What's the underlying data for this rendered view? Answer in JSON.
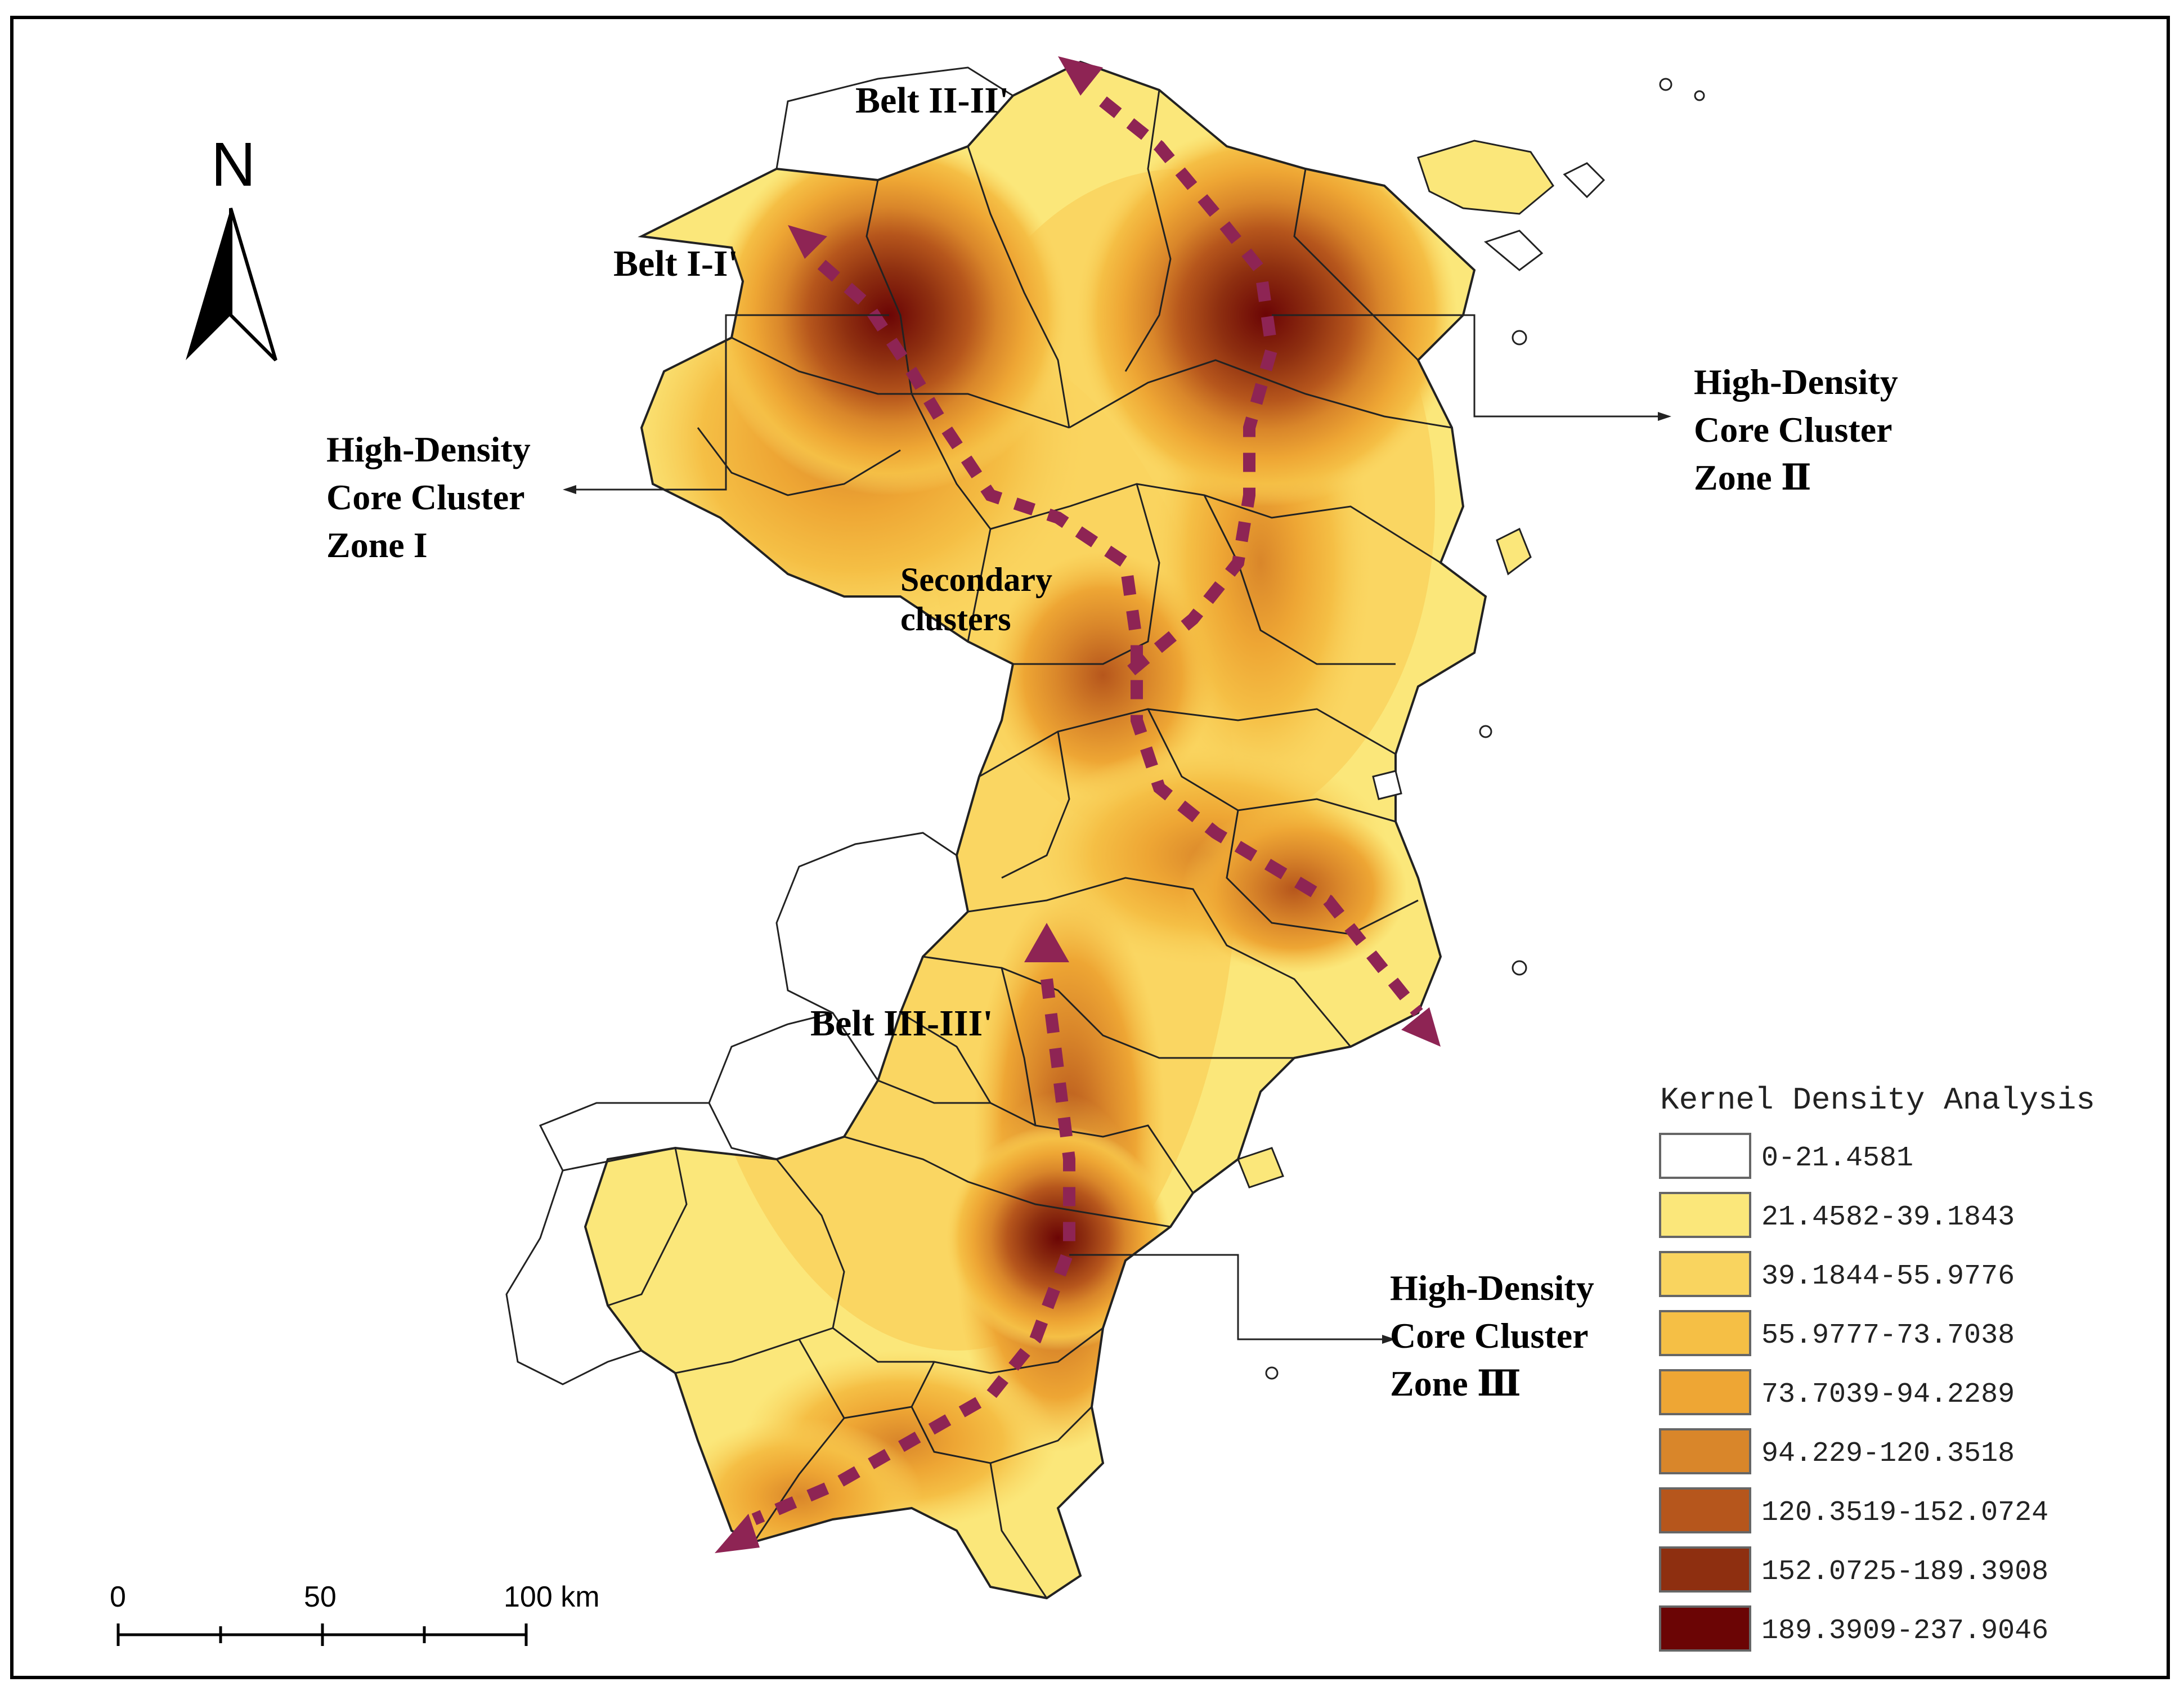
{
  "north_arrow": {
    "label": "N"
  },
  "belts": [
    {
      "label": "Belt I-I'"
    },
    {
      "label": "Belt II-II'"
    },
    {
      "label": "Belt III-III'"
    }
  ],
  "annotations": {
    "zone1": [
      "High-Density",
      "Core Cluster",
      "Zone I"
    ],
    "zone2": [
      "High-Density",
      "Core Cluster",
      "Zone Ⅱ"
    ],
    "zone3": [
      "High-Density",
      "Core Cluster",
      "Zone Ⅲ"
    ],
    "secondary": [
      "Secondary",
      "clusters"
    ]
  },
  "scale_bar": {
    "ticks": [
      "0",
      "50",
      "100 km"
    ]
  },
  "legend": {
    "title": "Kernel Density Analysis",
    "classes": [
      {
        "label": "0-21.4581",
        "color": "#ffffff"
      },
      {
        "label": "21.4582-39.1843",
        "color": "#fbe77a"
      },
      {
        "label": "39.1844-55.9776",
        "color": "#f9d45f"
      },
      {
        "label": "55.9777-73.7038",
        "color": "#f5bf45"
      },
      {
        "label": "73.7039-94.2289",
        "color": "#eea634"
      },
      {
        "label": "94.229-120.3518",
        "color": "#d9862a"
      },
      {
        "label": "120.3519-152.0724",
        "color": "#b6561c"
      },
      {
        "label": "152.0725-189.3908",
        "color": "#8e2f10"
      },
      {
        "label": "189.3909-237.9046",
        "color": "#6b0505"
      }
    ]
  },
  "colors": {
    "belt_arrow": "#8e2454",
    "boundary": "#222222"
  }
}
